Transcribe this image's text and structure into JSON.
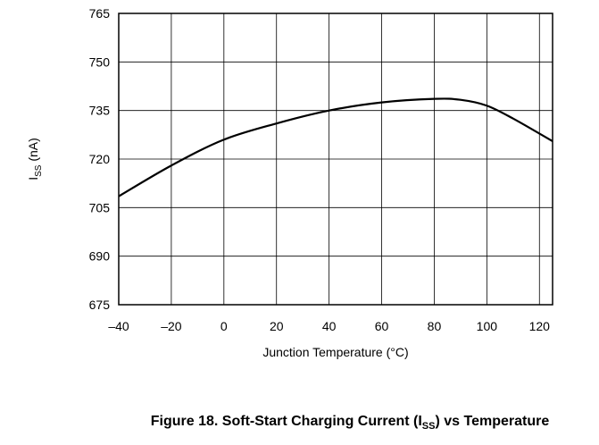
{
  "chart_data": {
    "type": "line",
    "caption": {
      "pre": "Figure 18. Soft-Start Charging Current (I",
      "sub": "SS",
      "post": ") vs Temperature"
    },
    "xlabel": "Junction Temperature (°C)",
    "ylabel": {
      "main": "I",
      "sub": "SS",
      "unit": " (nA)"
    },
    "xlim": [
      -40,
      125
    ],
    "ylim": [
      675,
      765
    ],
    "xticks": [
      -40,
      -20,
      0,
      20,
      40,
      60,
      80,
      100,
      120
    ],
    "xtick_labels": [
      "–40",
      "–20",
      "0",
      "20",
      "40",
      "60",
      "80",
      "100",
      "120"
    ],
    "yticks": [
      675,
      690,
      705,
      720,
      735,
      750,
      765
    ],
    "ytick_labels": [
      "675",
      "690",
      "705",
      "720",
      "735",
      "750",
      "765"
    ],
    "grid": true,
    "series": [
      {
        "color": "#000000",
        "x": [
          -40,
          -20,
          0,
          20,
          40,
          60,
          80,
          90,
          100,
          110,
          125
        ],
        "y": [
          708.5,
          718,
          726,
          731,
          735,
          737.5,
          738.6,
          738.3,
          736.5,
          732.5,
          725.5
        ]
      }
    ]
  }
}
